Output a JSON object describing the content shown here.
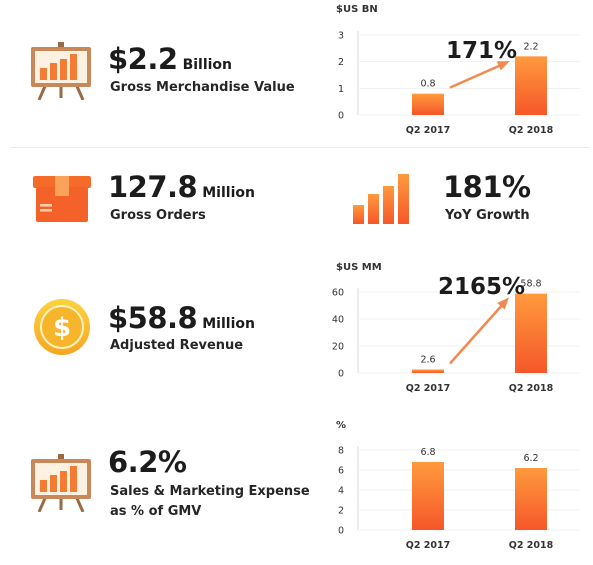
{
  "colors": {
    "bar_top": "#ff9a3d",
    "bar_bottom": "#f5572a",
    "arrow": "#f08a52",
    "axis": "#d9d9d9"
  },
  "rows": [
    {
      "icon": "easel-chart-icon",
      "value": "$2.2",
      "unit": "Billion",
      "label": "Gross Merchandise Value"
    },
    {
      "icon": "package-box-icon",
      "value": "127.8",
      "unit": "Million",
      "label": "Gross Orders"
    },
    {
      "icon": "dollar-coin-icon",
      "value": "$58.8",
      "unit": "Million",
      "label": "Adjusted Revenue"
    },
    {
      "icon": "easel-chart-icon",
      "value": "6.2%",
      "unit": "",
      "label_lines": [
        "Sales & Marketing Expense",
        "as % of GMV"
      ]
    }
  ],
  "growth": {
    "icon": "bar-growth-icon",
    "value": "181%",
    "label": "YoY Growth"
  },
  "chart_data": [
    {
      "type": "bar",
      "ylabel": "$US BN",
      "categories": [
        "Q2 2017",
        "Q2 2018"
      ],
      "values": [
        0.8,
        2.2
      ],
      "value_labels": [
        "0.8",
        "2.2"
      ],
      "yticks": [
        "0",
        "1",
        "2",
        "3"
      ],
      "ylim": [
        0,
        3
      ],
      "annotation": "171%"
    },
    {
      "type": "bar",
      "ylabel": "$US MM",
      "categories": [
        "Q2 2017",
        "Q2 2018"
      ],
      "values": [
        2.6,
        58.8
      ],
      "value_labels": [
        "2.6",
        "58.8"
      ],
      "yticks": [
        "0",
        "20",
        "40",
        "60"
      ],
      "ylim": [
        0,
        60
      ],
      "annotation": "2165%"
    },
    {
      "type": "bar",
      "ylabel": "%",
      "categories": [
        "Q2 2017",
        "Q2 2018"
      ],
      "values": [
        6.8,
        6.2
      ],
      "value_labels": [
        "6.8",
        "6.2"
      ],
      "yticks": [
        "0",
        "2",
        "4",
        "6",
        "8"
      ],
      "ylim": [
        0,
        8
      ],
      "annotation": ""
    }
  ]
}
